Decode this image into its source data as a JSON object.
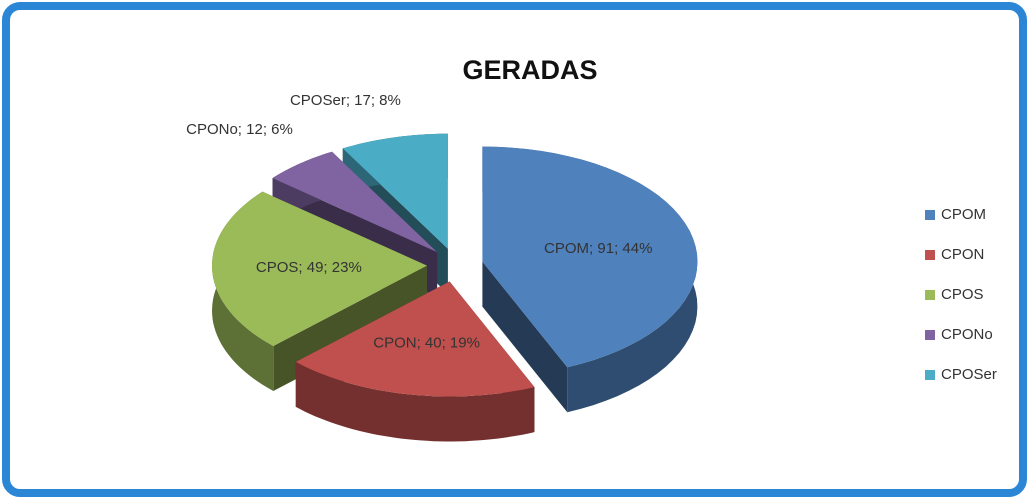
{
  "chart_data": {
    "type": "pie",
    "title": "GERADAS",
    "categories": [
      "CPOM",
      "CPON",
      "CPOS",
      "CPONo",
      "CPOSer"
    ],
    "values": [
      91,
      40,
      49,
      12,
      17
    ],
    "value_labels": [
      "CPOM; 91; 44%",
      "CPON; 40; 19%",
      "CPOS; 49; 23%",
      "CPONo; 12; 6%",
      "CPOSer; 17; 8%"
    ],
    "colors": [
      "#4f81bd",
      "#c0504d",
      "#9bbb59",
      "#8064a2",
      "#4bacc6"
    ],
    "legend": "right",
    "three_d": true
  }
}
